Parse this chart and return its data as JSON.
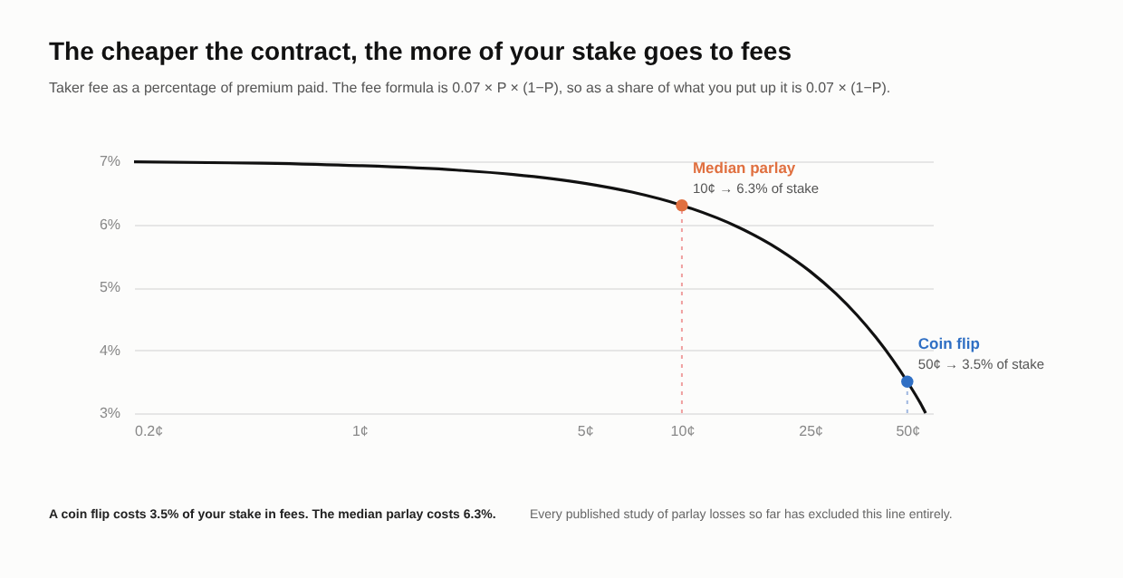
{
  "chart_data": {
    "type": "line",
    "title": "The cheaper the contract, the more of your stake goes to fees",
    "subtitle": "Taker fee as a percentage of premium paid. The fee formula is 0.07 × P × (1−P), so as a share of what you put up it is 0.07 × (1−P).",
    "log": "x",
    "grid": "y",
    "line_style": "solid",
    "xlim": [
      0.2,
      60
    ],
    "ylim": [
      3,
      7
    ],
    "xticks": [
      {
        "value": 0.2,
        "label": "0.2¢"
      },
      {
        "value": 1,
        "label": "1¢"
      },
      {
        "value": 5,
        "label": "5¢"
      },
      {
        "value": 10,
        "label": "10¢"
      },
      {
        "value": 25,
        "label": "25¢"
      },
      {
        "value": 50,
        "label": "50¢"
      }
    ],
    "yticks": [
      {
        "value": 3,
        "label": "3%"
      },
      {
        "value": 4,
        "label": "4%"
      },
      {
        "value": 5,
        "label": "5%"
      },
      {
        "value": 6,
        "label": "6%"
      },
      {
        "value": 7,
        "label": "7%"
      }
    ],
    "series": [
      {
        "color": "#111111",
        "x": [
          0.2,
          0.5,
          1,
          2,
          3,
          5,
          7,
          10,
          15,
          20,
          25,
          30,
          35,
          40,
          45,
          50,
          55,
          57
        ],
        "values": [
          6.99,
          6.97,
          6.93,
          6.86,
          6.79,
          6.65,
          6.51,
          6.3,
          5.95,
          5.6,
          5.25,
          4.9,
          4.55,
          4.2,
          3.85,
          3.5,
          3.15,
          3.0
        ]
      },
      {
        "type": "scatter",
        "name": "Median parlay",
        "color": "#e07040",
        "x": [
          10
        ],
        "values": [
          6.3
        ],
        "marker": "circle"
      },
      {
        "type": "scatter",
        "name": "Coin flip",
        "color": "#2f6fc4",
        "x": [
          50
        ],
        "values": [
          3.5
        ],
        "marker": "circle"
      }
    ],
    "ref_lines": [
      {
        "axis": "x",
        "value": 10,
        "color": "#f0a0a0",
        "line_style": "dotted"
      },
      {
        "axis": "x",
        "value": 50,
        "color": "#a0b8e0",
        "line_style": "dotted"
      }
    ],
    "annotations": [
      {
        "text": "10¢ → 6.3% of stake",
        "x": 10,
        "y": 6.3
      },
      {
        "text": "50¢ → 3.5% of stake",
        "x": 50,
        "y": 3.5
      },
      "A coin flip costs 3.5% of your stake in fees. The median parlay costs 6.3%.",
      "Every published study of parlay losses so far has excluded this line entirely."
    ]
  }
}
